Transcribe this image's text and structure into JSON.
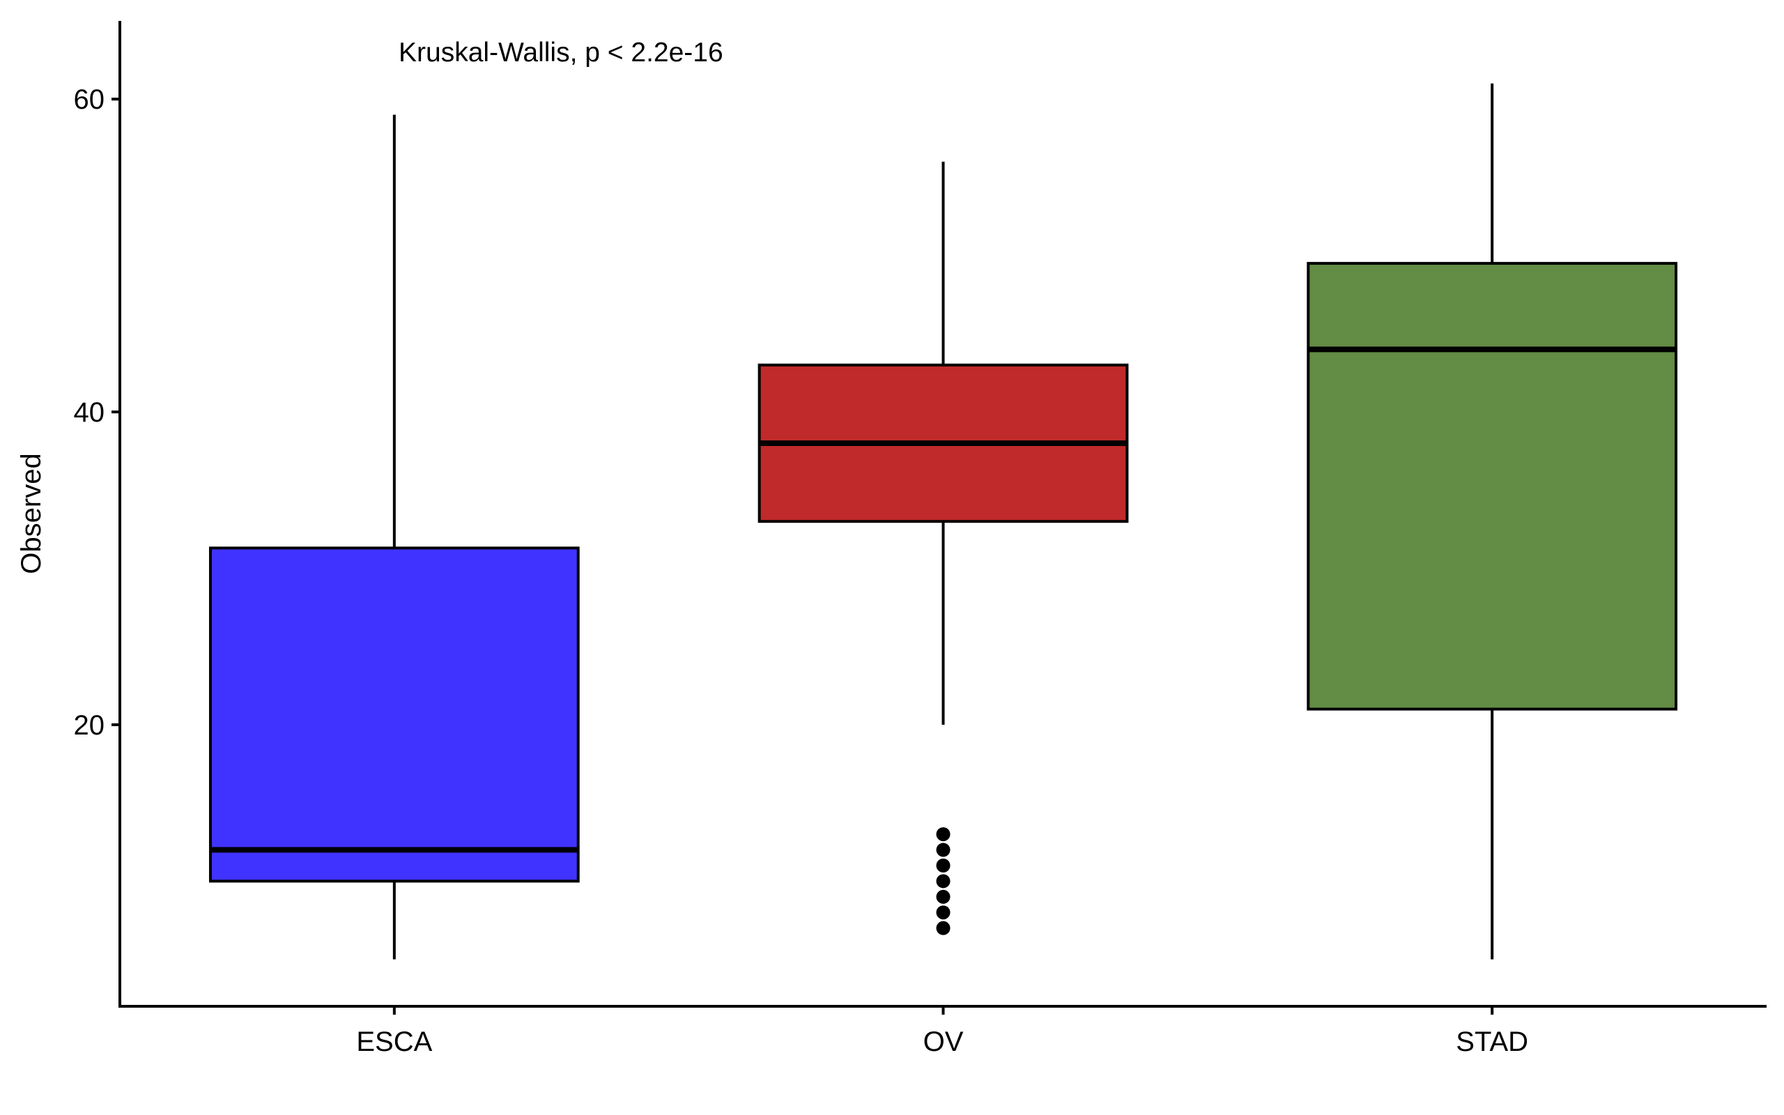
{
  "chart_data": {
    "type": "boxplot",
    "ylabel": "Observed",
    "xlabel": "",
    "ylim": [
      2,
      65
    ],
    "yticks": [
      20,
      40,
      60
    ],
    "grid": false,
    "annotation": "Kruskal-Wallis, p < 2.2e-16",
    "categories": [
      "ESCA",
      "OV",
      "STAD"
    ],
    "boxes": [
      {
        "category": "ESCA",
        "color": "#4033FF",
        "whisker_low": 5,
        "q1": 10,
        "median": 12,
        "q3": 31.3,
        "whisker_high": 59,
        "outliers": []
      },
      {
        "category": "OV",
        "color": "#C02A2A",
        "whisker_low": 20,
        "q1": 33,
        "median": 38,
        "q3": 43,
        "whisker_high": 56,
        "outliers": [
          7,
          8,
          9,
          10,
          11,
          12,
          13
        ]
      },
      {
        "category": "STAD",
        "color": "#638C45",
        "whisker_low": 5,
        "q1": 21,
        "median": 44,
        "q3": 49.5,
        "whisker_high": 61,
        "outliers": []
      }
    ]
  }
}
